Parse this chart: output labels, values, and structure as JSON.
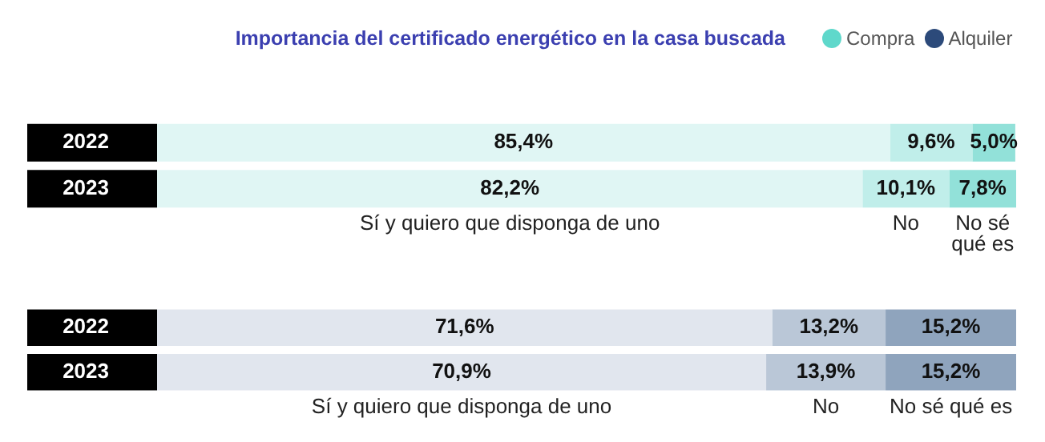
{
  "chart_data": [
    {
      "type": "bar",
      "orientation": "horizontal",
      "stacked": true,
      "title": "Importancia del certificado energético en la casa buscada",
      "annotations": [
        "Compra"
      ],
      "categories": [
        "2022",
        "2023"
      ],
      "series": [
        {
          "name": "Sí y quiero que disponga de uno",
          "color": "#e0f6f4",
          "values": [
            85.4,
            82.2
          ],
          "value_labels": [
            "85,4%",
            "82,2%"
          ]
        },
        {
          "name": "No",
          "color": "#c0eeea",
          "values": [
            9.6,
            10.1
          ],
          "value_labels": [
            "9,6%",
            "10,1%"
          ]
        },
        {
          "name": "No sé qué es",
          "color": "#92e1d9",
          "values": [
            5.0,
            7.8
          ],
          "value_labels": [
            "5,0%",
            "7,8%"
          ]
        }
      ]
    },
    {
      "type": "bar",
      "orientation": "horizontal",
      "stacked": true,
      "annotations": [
        "Alquiler"
      ],
      "categories": [
        "2022",
        "2023"
      ],
      "series": [
        {
          "name": "Sí y quiero que disponga de uno",
          "color": "#e1e6ee",
          "values": [
            71.6,
            70.9
          ],
          "value_labels": [
            "71,6%",
            "70,9%"
          ]
        },
        {
          "name": "No",
          "color": "#bac7d7",
          "values": [
            13.2,
            13.9
          ],
          "value_labels": [
            "13,2%",
            "13,9%"
          ]
        },
        {
          "name": "No sé qué es",
          "color": "#8fa4bd",
          "values": [
            15.2,
            15.2
          ],
          "value_labels": [
            "15,2%",
            "15,2%"
          ]
        }
      ]
    }
  ]
}
